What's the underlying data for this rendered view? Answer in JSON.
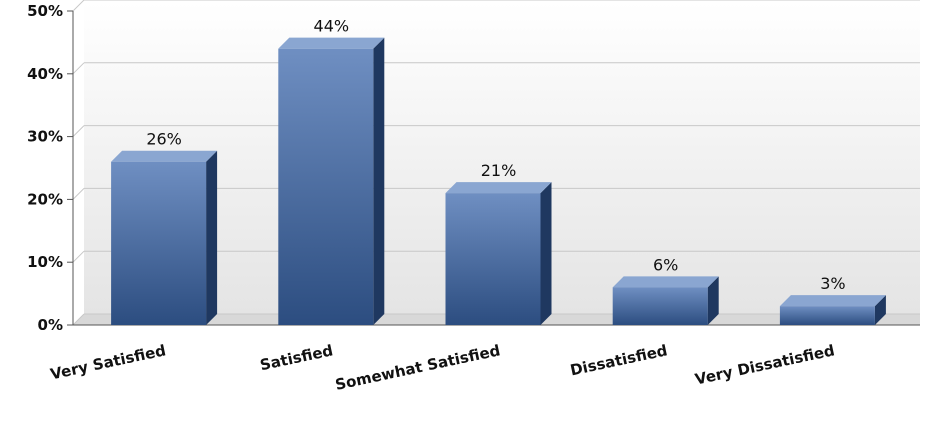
{
  "chart_data": {
    "type": "bar",
    "categories": [
      "Very Satisfied",
      "Satisfied",
      "Somewhat Satisfied",
      "Dissatisfied",
      "Very Dissatisfied"
    ],
    "values": [
      26,
      44,
      21,
      6,
      3
    ],
    "data_labels": [
      "26%",
      "44%",
      "21%",
      "6%",
      "3%"
    ],
    "title": "",
    "xlabel": "",
    "ylabel": "",
    "ylim": [
      0,
      50
    ],
    "y_ticks": [
      0,
      10,
      20,
      30,
      40,
      50
    ],
    "y_tick_labels": [
      "0%",
      "10%",
      "20%",
      "30%",
      "40%",
      "50%"
    ],
    "grid": true,
    "legend": "none",
    "style": "3d-bar",
    "colors": {
      "bar_top": "#7f9cc9",
      "bar_front_light": "#6f8fc2",
      "bar_front_dark": "#2c4d80",
      "bar_side": "#1f3860",
      "bar_cap": "#8aa6d1",
      "plot_bg_top": "#ffffff",
      "plot_bg_bottom": "#e4e4e4",
      "grid": "#c8c8c8",
      "axis": "#555555"
    }
  }
}
